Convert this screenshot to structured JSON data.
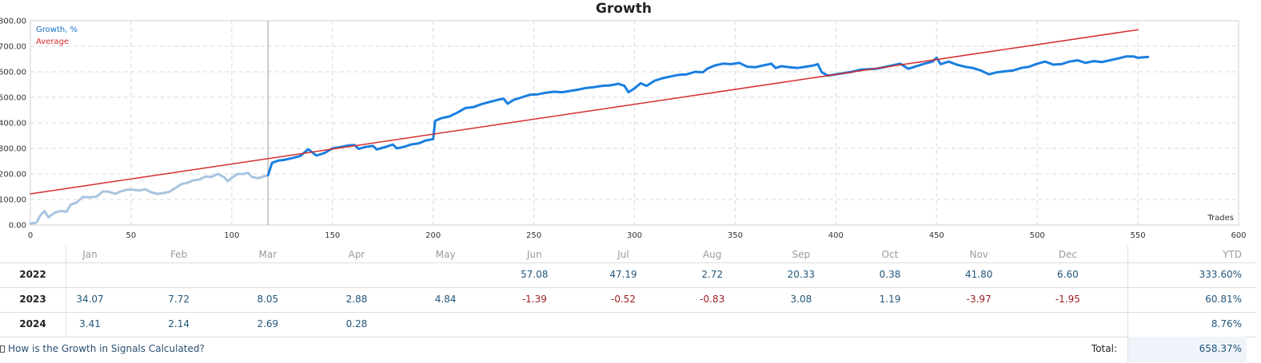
{
  "title": "Growth",
  "legend": {
    "growth": "Growth, %",
    "average": "Average",
    "x_axis_name": "Trades"
  },
  "colors": {
    "growth_before": "#a8c4e0",
    "growth_after": "#1a7ee0",
    "average": "#d62d2d",
    "grid": "#d9d9d9"
  },
  "chart_data": {
    "type": "line",
    "title": "Growth",
    "xlabel": "Trades",
    "ylabel": "",
    "xlim": [
      0,
      600
    ],
    "ylim": [
      0,
      800
    ],
    "x_ticks": [
      0,
      50,
      100,
      150,
      200,
      250,
      300,
      350,
      400,
      450,
      500,
      550,
      600
    ],
    "y_ticks": [
      "0.00",
      "100.00",
      "200.00",
      "300.00",
      "400.00",
      "500.00",
      "600.00",
      "700.00",
      "800.00"
    ],
    "grid": true,
    "legend_position": "top-left",
    "marker_x": 118,
    "series": [
      {
        "name": "Growth, %",
        "style": "faded (before marker)",
        "points": [
          [
            0,
            5
          ],
          [
            3,
            10
          ],
          [
            5,
            38
          ],
          [
            7,
            55
          ],
          [
            9,
            30
          ],
          [
            12,
            48
          ],
          [
            15,
            55
          ],
          [
            18,
            52
          ],
          [
            20,
            80
          ],
          [
            23,
            88
          ],
          [
            26,
            110
          ],
          [
            30,
            108
          ],
          [
            33,
            112
          ],
          [
            36,
            132
          ],
          [
            39,
            130
          ],
          [
            42,
            122
          ],
          [
            45,
            132
          ],
          [
            48,
            138
          ],
          [
            51,
            138
          ],
          [
            54,
            135
          ],
          [
            57,
            140
          ],
          [
            60,
            128
          ],
          [
            63,
            122
          ],
          [
            66,
            125
          ],
          [
            69,
            130
          ],
          [
            72,
            145
          ],
          [
            75,
            160
          ],
          [
            78,
            165
          ],
          [
            81,
            175
          ],
          [
            84,
            178
          ],
          [
            87,
            190
          ],
          [
            90,
            188
          ],
          [
            93,
            200
          ],
          [
            96,
            188
          ],
          [
            98,
            172
          ],
          [
            100,
            185
          ],
          [
            103,
            200
          ],
          [
            106,
            200
          ],
          [
            108,
            205
          ],
          [
            110,
            188
          ],
          [
            113,
            183
          ],
          [
            115,
            188
          ],
          [
            118,
            195
          ]
        ]
      },
      {
        "name": "Growth, %",
        "style": "solid (after marker)",
        "points": [
          [
            118,
            195
          ],
          [
            120,
            243
          ],
          [
            123,
            252
          ],
          [
            126,
            255
          ],
          [
            130,
            262
          ],
          [
            134,
            270
          ],
          [
            138,
            297
          ],
          [
            142,
            272
          ],
          [
            146,
            282
          ],
          [
            150,
            300
          ],
          [
            154,
            305
          ],
          [
            158,
            312
          ],
          [
            161,
            313
          ],
          [
            163,
            298
          ],
          [
            166,
            305
          ],
          [
            170,
            310
          ],
          [
            172,
            296
          ],
          [
            176,
            305
          ],
          [
            180,
            315
          ],
          [
            182,
            300
          ],
          [
            185,
            305
          ],
          [
            189,
            315
          ],
          [
            193,
            320
          ],
          [
            196,
            330
          ],
          [
            199,
            335
          ],
          [
            200,
            336
          ],
          [
            201,
            408
          ],
          [
            204,
            418
          ],
          [
            208,
            425
          ],
          [
            212,
            440
          ],
          [
            216,
            458
          ],
          [
            220,
            462
          ],
          [
            224,
            473
          ],
          [
            228,
            482
          ],
          [
            232,
            490
          ],
          [
            235,
            495
          ],
          [
            237,
            475
          ],
          [
            240,
            490
          ],
          [
            244,
            500
          ],
          [
            248,
            510
          ],
          [
            252,
            512
          ],
          [
            256,
            518
          ],
          [
            260,
            522
          ],
          [
            264,
            520
          ],
          [
            268,
            525
          ],
          [
            272,
            530
          ],
          [
            276,
            537
          ],
          [
            280,
            540
          ],
          [
            284,
            545
          ],
          [
            288,
            547
          ],
          [
            292,
            553
          ],
          [
            295,
            545
          ],
          [
            297,
            520
          ],
          [
            300,
            535
          ],
          [
            303,
            555
          ],
          [
            306,
            545
          ],
          [
            310,
            565
          ],
          [
            314,
            575
          ],
          [
            318,
            582
          ],
          [
            322,
            588
          ],
          [
            326,
            590
          ],
          [
            330,
            600
          ],
          [
            334,
            598
          ],
          [
            336,
            612
          ],
          [
            340,
            625
          ],
          [
            344,
            632
          ],
          [
            348,
            630
          ],
          [
            352,
            635
          ],
          [
            356,
            620
          ],
          [
            360,
            618
          ],
          [
            364,
            625
          ],
          [
            368,
            632
          ],
          [
            370,
            615
          ],
          [
            373,
            622
          ],
          [
            377,
            618
          ],
          [
            381,
            615
          ],
          [
            385,
            620
          ],
          [
            389,
            625
          ],
          [
            391,
            630
          ],
          [
            393,
            598
          ],
          [
            396,
            585
          ],
          [
            400,
            590
          ],
          [
            404,
            595
          ],
          [
            408,
            600
          ],
          [
            412,
            608
          ],
          [
            416,
            610
          ],
          [
            420,
            612
          ],
          [
            424,
            618
          ],
          [
            428,
            625
          ],
          [
            432,
            632
          ],
          [
            436,
            612
          ],
          [
            440,
            622
          ],
          [
            444,
            632
          ],
          [
            448,
            640
          ],
          [
            450,
            655
          ],
          [
            452,
            630
          ],
          [
            456,
            640
          ],
          [
            460,
            628
          ],
          [
            464,
            620
          ],
          [
            468,
            615
          ],
          [
            472,
            605
          ],
          [
            476,
            590
          ],
          [
            480,
            598
          ],
          [
            484,
            602
          ],
          [
            488,
            605
          ],
          [
            492,
            615
          ],
          [
            496,
            620
          ],
          [
            500,
            632
          ],
          [
            504,
            640
          ],
          [
            508,
            628
          ],
          [
            512,
            630
          ],
          [
            516,
            640
          ],
          [
            520,
            645
          ],
          [
            524,
            635
          ],
          [
            528,
            642
          ],
          [
            532,
            638
          ],
          [
            536,
            645
          ],
          [
            540,
            652
          ],
          [
            544,
            660
          ],
          [
            548,
            660
          ],
          [
            550,
            655
          ],
          [
            555,
            658
          ]
        ]
      },
      {
        "name": "Average",
        "points": [
          [
            0,
            122
          ],
          [
            550,
            765
          ]
        ]
      }
    ]
  },
  "table": {
    "months": [
      "Jan",
      "Feb",
      "Mar",
      "Apr",
      "May",
      "Jun",
      "Jul",
      "Aug",
      "Sep",
      "Oct",
      "Nov",
      "Dec"
    ],
    "ytd_label": "YTD",
    "rows": [
      {
        "year": "2022",
        "values": [
          "",
          "",
          "",
          "",
          "",
          "57.08",
          "47.19",
          "2.72",
          "20.33",
          "0.38",
          "41.80",
          "6.60"
        ],
        "ytd": "333.60%"
      },
      {
        "year": "2023",
        "values": [
          "34.07",
          "7.72",
          "8.05",
          "2.88",
          "4.84",
          "-1.39",
          "-0.52",
          "-0.83",
          "3.08",
          "1.19",
          "-3.97",
          "-1.95"
        ],
        "ytd": "60.81%"
      },
      {
        "year": "2024",
        "values": [
          "3.41",
          "2.14",
          "2.69",
          "0.28",
          "",
          "",
          "",
          "",
          "",
          "",
          "",
          ""
        ],
        "ytd": "8.76%"
      }
    ],
    "total_label": "Total:",
    "total_value": "658.37%"
  },
  "footer": {
    "link_text": "How is the Growth in Signals Calculated?",
    "link_icon": "document-icon"
  }
}
